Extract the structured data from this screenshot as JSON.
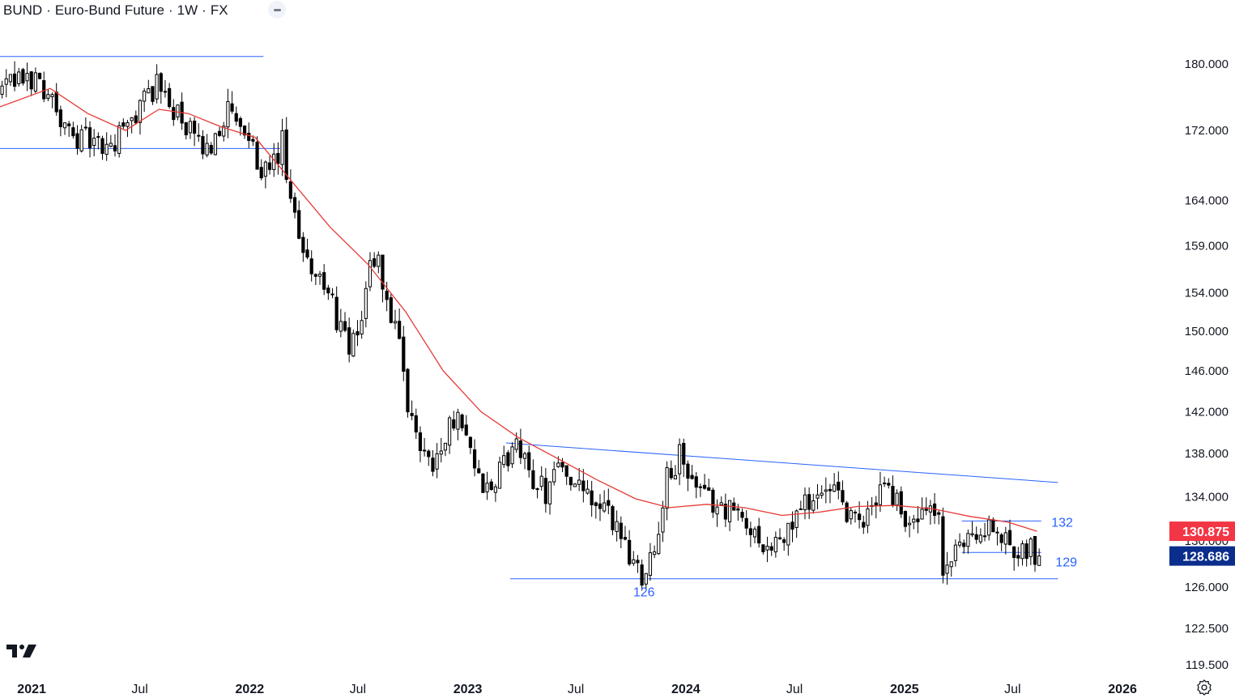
{
  "header": {
    "symbol": "BUND",
    "name": "Euro-Bund Future",
    "interval": "1W",
    "exchange": "FX",
    "separator": "·"
  },
  "colors": {
    "candle": "#000000",
    "moving_average": "#e53935",
    "trendlines": "#2962ff",
    "ma_badge": "#f23645",
    "price_badge": "#0b2e8c",
    "axis_text": "#131722"
  },
  "icons": {
    "logo": "tradingview-logo-icon",
    "settings": "settings-gear-icon",
    "collapse": "minus-icon"
  },
  "chart_data": {
    "type": "candlestick",
    "timeframe": "1W",
    "y_axis": {
      "scale": "log",
      "range": [
        118.5,
        188
      ],
      "ticks": [
        "119.500",
        "122.500",
        "126.000",
        "130.000",
        "134.000",
        "138.000",
        "142.000",
        "146.000",
        "150.000",
        "154.000",
        "159.000",
        "164.000",
        "172.000",
        "180.000"
      ]
    },
    "x_axis": {
      "range": [
        "2020-11-09",
        "2026-02-16"
      ],
      "ticks": [
        {
          "label": "2021",
          "date": "2021-01-01",
          "bold": true
        },
        {
          "label": "Jul",
          "date": "2021-07-01",
          "bold": false
        },
        {
          "label": "2022",
          "date": "2022-01-01",
          "bold": true
        },
        {
          "label": "Jul",
          "date": "2022-07-01",
          "bold": false
        },
        {
          "label": "2023",
          "date": "2023-01-01",
          "bold": true
        },
        {
          "label": "Jul",
          "date": "2023-07-01",
          "bold": false
        },
        {
          "label": "2024",
          "date": "2024-01-01",
          "bold": true
        },
        {
          "label": "Jul",
          "date": "2024-07-01",
          "bold": false
        },
        {
          "label": "2025",
          "date": "2025-01-01",
          "bold": true
        },
        {
          "label": "Jul",
          "date": "2025-07-01",
          "bold": false
        },
        {
          "label": "2026",
          "date": "2026-01-01",
          "bold": true
        }
      ]
    },
    "price_path": [
      [
        "2020-11-09",
        176.5
      ],
      [
        "2020-12-07",
        177.6
      ],
      [
        "2021-01-04",
        178.3
      ],
      [
        "2021-02-01",
        176.8
      ],
      [
        "2021-03-01",
        171.8
      ],
      [
        "2021-04-05",
        171.0
      ],
      [
        "2021-05-10",
        169.6
      ],
      [
        "2021-06-14",
        172.4
      ],
      [
        "2021-07-19",
        176.6
      ],
      [
        "2021-08-02",
        177.3
      ],
      [
        "2021-08-23",
        175.6
      ],
      [
        "2021-09-13",
        172.8
      ],
      [
        "2021-10-11",
        170.4
      ],
      [
        "2021-10-25",
        169.4
      ],
      [
        "2021-11-08",
        171.8
      ],
      [
        "2021-11-29",
        174.2
      ],
      [
        "2021-12-13",
        172.6
      ],
      [
        "2022-01-03",
        170.3
      ],
      [
        "2022-01-24",
        168.0
      ],
      [
        "2022-02-07",
        166.4
      ],
      [
        "2022-02-28",
        170.5
      ],
      [
        "2022-03-14",
        163.0
      ],
      [
        "2022-04-04",
        159.0
      ],
      [
        "2022-04-25",
        156.0
      ],
      [
        "2022-05-16",
        153.5
      ],
      [
        "2022-06-06",
        150.5
      ],
      [
        "2022-06-20",
        147.5
      ],
      [
        "2022-07-04",
        149.5
      ],
      [
        "2022-07-25",
        157.0
      ],
      [
        "2022-08-08",
        157.3
      ],
      [
        "2022-08-22",
        153.0
      ],
      [
        "2022-09-12",
        148.0
      ],
      [
        "2022-09-26",
        142.0
      ],
      [
        "2022-10-17",
        139.0
      ],
      [
        "2022-11-07",
        137.3
      ],
      [
        "2022-12-05",
        140.2
      ],
      [
        "2022-12-19",
        142.8
      ],
      [
        "2023-01-02",
        140.0
      ],
      [
        "2023-01-23",
        135.5
      ],
      [
        "2023-02-13",
        134.0
      ],
      [
        "2023-03-06",
        137.5
      ],
      [
        "2023-03-27",
        138.5
      ],
      [
        "2023-04-17",
        136.3
      ],
      [
        "2023-05-15",
        134.5
      ],
      [
        "2023-05-29",
        137.0
      ],
      [
        "2023-06-19",
        136.5
      ],
      [
        "2023-07-10",
        134.5
      ],
      [
        "2023-07-31",
        133.4
      ],
      [
        "2023-08-21",
        132.5
      ],
      [
        "2023-09-11",
        131.5
      ],
      [
        "2023-10-02",
        128.8
      ],
      [
        "2023-10-23",
        127.3
      ],
      [
        "2023-11-13",
        129.5
      ],
      [
        "2023-12-04",
        135.5
      ],
      [
        "2023-12-25",
        137.7
      ],
      [
        "2024-01-15",
        135.2
      ],
      [
        "2024-02-05",
        133.7
      ],
      [
        "2024-03-04",
        133.2
      ],
      [
        "2024-03-25",
        132.6
      ],
      [
        "2024-04-15",
        131.4
      ],
      [
        "2024-05-06",
        130.4
      ],
      [
        "2024-05-27",
        129.3
      ],
      [
        "2024-06-17",
        130.0
      ],
      [
        "2024-07-01",
        131.8
      ],
      [
        "2024-07-22",
        133.5
      ],
      [
        "2024-08-12",
        134.2
      ],
      [
        "2024-09-09",
        134.0
      ],
      [
        "2024-09-30",
        132.6
      ],
      [
        "2024-10-21",
        131.2
      ],
      [
        "2024-11-11",
        133.0
      ],
      [
        "2024-12-02",
        135.6
      ],
      [
        "2024-12-23",
        133.5
      ],
      [
        "2025-01-13",
        131.4
      ],
      [
        "2025-02-10",
        132.3
      ],
      [
        "2025-03-03",
        132.0
      ],
      [
        "2025-03-10",
        127.2
      ],
      [
        "2025-03-31",
        128.6
      ],
      [
        "2025-04-21",
        130.8
      ],
      [
        "2025-05-19",
        130.9
      ],
      [
        "2025-06-16",
        130.4
      ],
      [
        "2025-07-07",
        129.7
      ],
      [
        "2025-08-04",
        129.5
      ],
      [
        "2025-08-11",
        128.7
      ]
    ],
    "last_price": 128.686,
    "moving_average": {
      "value": 130.875,
      "points": [
        [
          "2020-11-09",
          174.8
        ],
        [
          "2021-02-01",
          177.0
        ],
        [
          "2021-04-05",
          174.0
        ],
        [
          "2021-06-07",
          172.0
        ],
        [
          "2021-08-02",
          174.5
        ],
        [
          "2021-09-20",
          174.0
        ],
        [
          "2021-11-15",
          172.4
        ],
        [
          "2022-01-10",
          171.2
        ],
        [
          "2022-03-14",
          166.0
        ],
        [
          "2022-05-16",
          161.0
        ],
        [
          "2022-07-18",
          157.0
        ],
        [
          "2022-09-19",
          152.0
        ],
        [
          "2022-11-21",
          146.0
        ],
        [
          "2023-01-23",
          142.0
        ],
        [
          "2023-03-27",
          139.5
        ],
        [
          "2023-05-29",
          137.6
        ],
        [
          "2023-08-07",
          135.5
        ],
        [
          "2023-10-09",
          133.8
        ],
        [
          "2023-12-04",
          133.0
        ],
        [
          "2024-02-05",
          133.3
        ],
        [
          "2024-04-08",
          133.0
        ],
        [
          "2024-06-10",
          132.3
        ],
        [
          "2024-08-12",
          132.6
        ],
        [
          "2024-10-14",
          133.1
        ],
        [
          "2024-12-16",
          133.2
        ],
        [
          "2025-02-17",
          132.9
        ],
        [
          "2025-04-21",
          132.2
        ],
        [
          "2025-06-23",
          131.7
        ],
        [
          "2025-08-11",
          130.875
        ]
      ]
    },
    "trendlines": [
      {
        "from": [
          "2020-11-09",
          180.9
        ],
        "to": [
          "2022-01-24",
          180.9
        ]
      },
      {
        "from": [
          "2020-11-09",
          169.9
        ],
        "to": [
          "2022-02-21",
          169.9
        ]
      },
      {
        "from": [
          "2023-03-06",
          139.0
        ],
        "to": [
          "2025-09-15",
          135.3
        ]
      },
      {
        "from": [
          "2023-03-13",
          126.7
        ],
        "to": [
          "2025-09-15",
          126.7
        ]
      },
      {
        "from": [
          "2025-04-07",
          131.8
        ],
        "to": [
          "2025-08-18",
          131.8
        ]
      },
      {
        "from": [
          "2025-04-07",
          129.0
        ],
        "to": [
          "2025-08-18",
          129.0
        ]
      }
    ],
    "annotations": [
      {
        "text": "126",
        "date": "2023-10-23",
        "price": 125.6
      },
      {
        "text": "132",
        "date": "2025-09-22",
        "price": 131.7
      },
      {
        "text": "129",
        "date": "2025-09-29",
        "price": 128.2
      }
    ]
  }
}
